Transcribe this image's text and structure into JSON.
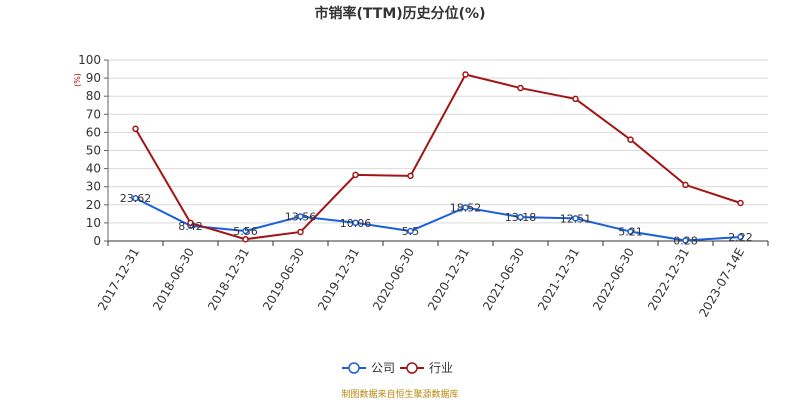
{
  "chart_data": {
    "type": "line",
    "title": "市销率(TTM)历史分位(%)",
    "ylabel": "(%)",
    "xlabel": "",
    "ylim": [
      0,
      100
    ],
    "yticks": [
      "0",
      "10",
      "20",
      "30",
      "40",
      "50",
      "60",
      "70",
      "80",
      "90",
      "100"
    ],
    "categories": [
      "2017-12-31",
      "2018-06-30",
      "2018-12-31",
      "2019-06-30",
      "2019-12-31",
      "2020-06-30",
      "2020-12-31",
      "2021-06-30",
      "2021-12-31",
      "2022-06-30",
      "2022-12-31",
      "2023-07-14E"
    ],
    "series": [
      {
        "name": "公司",
        "color": "#1a5fe0",
        "values": [
          23.62,
          8.42,
          5.56,
          13.56,
          10.06,
          5.5,
          18.52,
          13.18,
          12.51,
          5.21,
          0.28,
          2.22
        ],
        "labels": [
          "23.62",
          "8.42",
          "5.56",
          "13.56",
          "10.06",
          "5.5",
          "18.52",
          "13.18",
          "12.51",
          "5.21",
          "0.28",
          "2.22"
        ]
      },
      {
        "name": "行业",
        "color": "#a31515",
        "values": [
          62,
          10,
          1,
          5,
          36.5,
          36,
          92,
          84.5,
          78.5,
          56,
          31,
          21
        ]
      }
    ],
    "legend_position": "bottom-center",
    "grid": true
  },
  "source_note": "制图数据来自恒生聚源数据库"
}
